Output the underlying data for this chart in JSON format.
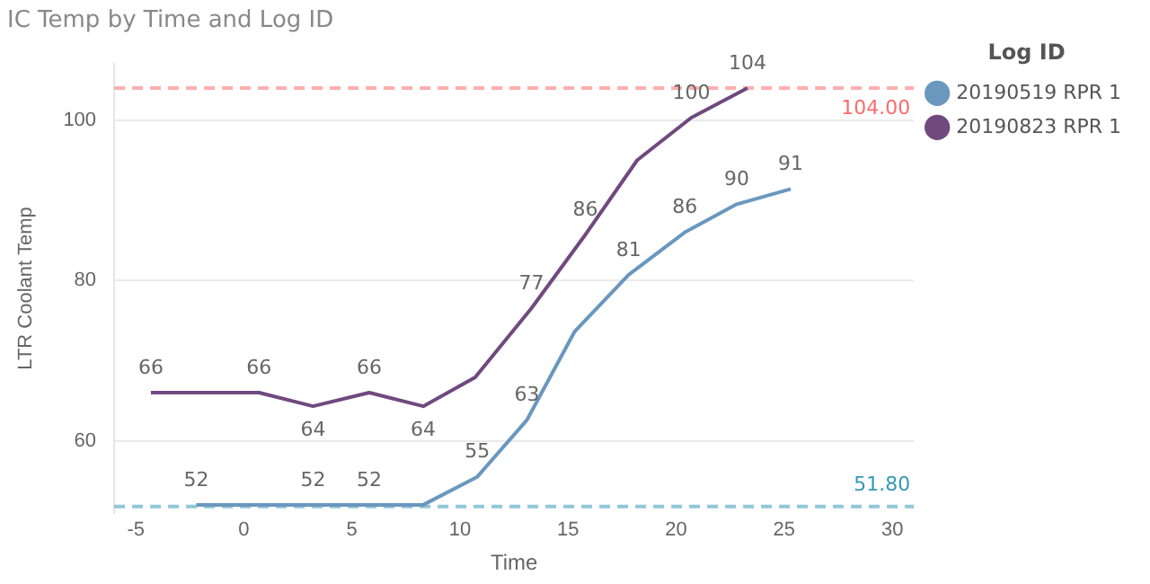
{
  "chart_data": {
    "type": "line",
    "title": "IC Temp by Time and Log ID",
    "xlabel": "Time",
    "ylabel": "LTR Coolant Temp",
    "legend_title": "Log ID",
    "legend": "top right",
    "grid": "y",
    "marker": "none",
    "line_style": "solid",
    "xlim": [
      -6,
      31
    ],
    "xticks": [
      -5,
      0,
      5,
      10,
      15,
      20,
      25,
      30
    ],
    "ylim": [
      51,
      107
    ],
    "yticks": [
      60,
      80,
      100
    ],
    "series": [
      {
        "name": "20190519 RPR 1",
        "color": "#6a97be",
        "x": [
          -2.2,
          0.7,
          3.2,
          5.8,
          8.3,
          10.8,
          13.1,
          15.3,
          17.8,
          20.4,
          22.8,
          25.3
        ],
        "values": [
          52,
          52,
          52,
          52,
          52,
          55.5,
          62.6,
          73.6,
          80.7,
          86,
          89.5,
          91.4
        ],
        "value_labels": [
          "52",
          null,
          "52",
          "52",
          null,
          "55",
          "63",
          null,
          "81",
          "86",
          "90",
          "91"
        ]
      },
      {
        "name": "20190823 RPR 1",
        "color": "#70497f",
        "x": [
          -4.3,
          0.7,
          3.2,
          5.8,
          8.3,
          10.7,
          13.3,
          15.8,
          18.2,
          20.7,
          23.3
        ],
        "values": [
          66,
          66,
          64.3,
          66,
          64.3,
          67.9,
          76.5,
          85.7,
          95,
          100.3,
          104
        ],
        "value_labels": [
          "66",
          "66",
          "64",
          "66",
          "64",
          null,
          "77",
          "86",
          null,
          "100",
          "104"
        ]
      }
    ],
    "ref_lines": [
      {
        "axis": "y",
        "value": 104,
        "label": "104.00",
        "color": "#fd6b6b",
        "line_style": "dashed"
      },
      {
        "axis": "y",
        "value": 51.8,
        "label": "51.80",
        "color": "#3599b8",
        "line_style": "dashed"
      }
    ]
  }
}
